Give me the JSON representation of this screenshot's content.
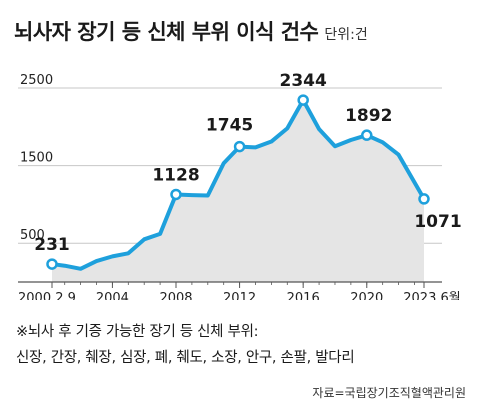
{
  "header": {
    "title": "뇌사자 장기 등 신체 부위 이식 건수",
    "unit": "단위:건"
  },
  "chart_data": {
    "type": "line",
    "title": "뇌사자 장기 등 신체 부위 이식 건수",
    "unit": "단위:건",
    "x": [
      2000.2,
      2001,
      2002,
      2003,
      2004,
      2005,
      2006,
      2007,
      2008,
      2009,
      2010,
      2011,
      2012,
      2013,
      2014,
      2015,
      2016,
      2017,
      2018,
      2019,
      2020,
      2021,
      2022,
      2023.6
    ],
    "values": [
      231,
      210,
      170,
      270,
      330,
      370,
      550,
      620,
      1128,
      1120,
      1115,
      1530,
      1745,
      1735,
      1810,
      1980,
      2344,
      1970,
      1750,
      1830,
      1892,
      1800,
      1640,
      1071
    ],
    "xticks": [
      {
        "value": 2000.2,
        "label": "2000.2.9"
      },
      {
        "value": 2004,
        "label": "2004"
      },
      {
        "value": 2008,
        "label": "2008"
      },
      {
        "value": 2012,
        "label": "2012"
      },
      {
        "value": 2016,
        "label": "2016"
      },
      {
        "value": 2020,
        "label": "2020"
      },
      {
        "value": 2023.6,
        "label": "2023.6월"
      }
    ],
    "yticks": [
      {
        "value": 500,
        "label": "500"
      },
      {
        "value": 1500,
        "label": "1500"
      },
      {
        "value": 2500,
        "label": "2500"
      }
    ],
    "annotations": [
      {
        "index": 0,
        "label": "231"
      },
      {
        "index": 8,
        "label": "1128"
      },
      {
        "index": 12,
        "label": "1745"
      },
      {
        "index": 16,
        "label": "2344"
      },
      {
        "index": 20,
        "label": "1892"
      },
      {
        "index": 23,
        "label": "1071"
      }
    ],
    "ylim": [
      0,
      2500
    ],
    "xlim": [
      2000.2,
      2023.6
    ],
    "grid": true,
    "colors": {
      "line": "#1ea0dc",
      "fill": "#e5e5e5",
      "grid": "#c7c7c7",
      "axis": "#555555"
    }
  },
  "notes": {
    "line1": "※뇌사 후 기증 가능한 장기 등 신체 부위:",
    "line2": "신장, 간장, 췌장, 심장, 폐, 췌도, 소장, 안구, 손팔, 발다리"
  },
  "source": "자료=국립장기조직혈액관리원"
}
